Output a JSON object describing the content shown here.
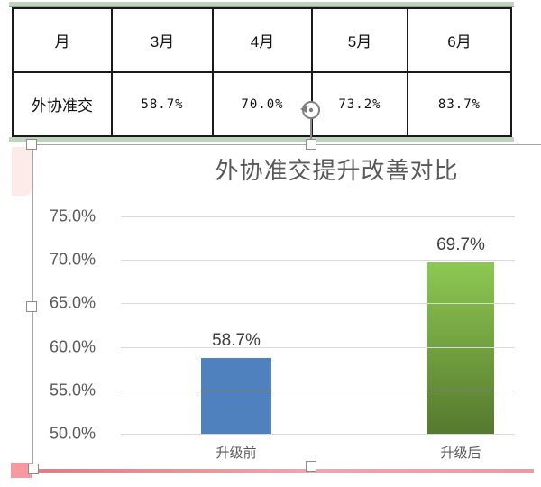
{
  "table": {
    "header": [
      "月",
      "3月",
      "4月",
      "5月",
      "6月"
    ],
    "values": [
      "外协准交",
      "58.7%",
      "70.0%",
      "73.2%",
      "83.7%"
    ]
  },
  "chart_data": {
    "type": "bar",
    "title": "外协准交提升改善对比",
    "categories": [
      "升级前",
      "升级后"
    ],
    "values": [
      58.7,
      69.7
    ],
    "data_labels": [
      "58.7%",
      "69.7%"
    ],
    "y_ticks": [
      "75.0%",
      "70.0%",
      "65.0%",
      "60.0%",
      "55.0%",
      "50.0%"
    ],
    "ylim": [
      50,
      75
    ],
    "xlabel": "",
    "ylabel": "",
    "grid": true,
    "legend": false,
    "bar_fills": [
      {
        "type": "solid",
        "color": "#4E81BD"
      },
      {
        "type": "gradient",
        "from": "#8DC852",
        "to": "#55792E"
      }
    ]
  },
  "selection": {
    "handles": [
      "top-left",
      "top-center",
      "mid-left",
      "bottom-left",
      "bottom-center"
    ],
    "icons": {
      "rotate_handle": "rotate-arrow"
    }
  },
  "colors": {
    "bar_pre_upgrade": "#4E81BD",
    "bar_post_upgrade_top": "#8DC852",
    "bar_post_upgrade_bottom": "#55792E",
    "gridline": "#D9D9D9",
    "axis_text": "#595959",
    "data_label_text": "#3F3F3F",
    "title_text": "#595959",
    "table_border": "#1A1A1A",
    "sheet_green_strip": "#BFD2BD",
    "red_row_band": "#E07B82",
    "pink_cell_highlight": "#FCEBE8",
    "selection_border": "#A6A6A6"
  }
}
